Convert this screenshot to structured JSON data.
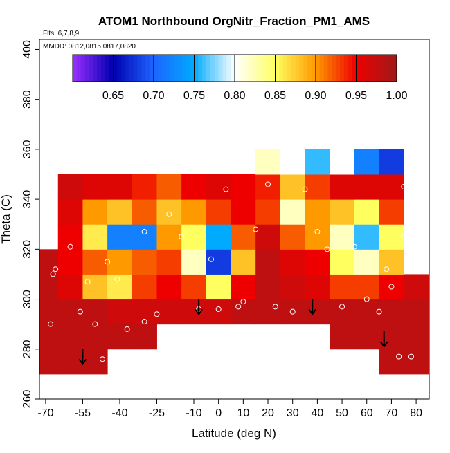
{
  "chart_data": {
    "type": "heatmap",
    "title": "ATOM1 Northbound OrgNitr_Fraction_PM1_AMS",
    "annotations": [
      "Flts: 6,7,8,9",
      "MMDD: 0812,0815,0817,0820"
    ],
    "x_label": "Latitude (deg N)",
    "y_label": "Theta (C)",
    "xlim": [
      -72.5,
      85.3
    ],
    "ylim": [
      260,
      404
    ],
    "xticks": [
      -70,
      -55,
      -40,
      -25,
      -10,
      0,
      10,
      20,
      30,
      40,
      50,
      60,
      70,
      80
    ],
    "yticks": [
      260,
      280,
      300,
      320,
      340,
      360,
      380,
      400
    ],
    "x": [
      -70,
      -60,
      -50,
      -40,
      -30,
      -20,
      -10,
      0,
      10,
      20,
      30,
      40,
      50,
      60,
      70,
      80
    ],
    "y": [
      275,
      285,
      295,
      305,
      315,
      325,
      335,
      345,
      355
    ],
    "z": [
      [
        0.98,
        0.98,
        0.98,
        null,
        null,
        null,
        null,
        null,
        null,
        null,
        null,
        null,
        null,
        null,
        0.98,
        0.98
      ],
      [
        0.98,
        0.98,
        0.98,
        0.98,
        0.98,
        null,
        null,
        null,
        null,
        null,
        null,
        null,
        0.98,
        0.98,
        0.98,
        0.98
      ],
      [
        0.98,
        0.98,
        0.98,
        0.97,
        0.97,
        0.97,
        0.97,
        0.97,
        0.98,
        0.98,
        0.98,
        0.98,
        0.98,
        0.98,
        0.98,
        0.98
      ],
      [
        0.98,
        0.96,
        0.88,
        0.86,
        0.93,
        0.95,
        0.93,
        0.85,
        0.95,
        0.98,
        0.97,
        0.96,
        0.93,
        0.93,
        0.95,
        0.97
      ],
      [
        0.98,
        0.95,
        0.92,
        0.9,
        0.92,
        0.93,
        0.82,
        0.68,
        0.88,
        0.98,
        0.96,
        0.95,
        0.85,
        0.82,
        0.88,
        null
      ],
      [
        null,
        0.95,
        0.86,
        0.72,
        0.72,
        0.9,
        0.85,
        0.75,
        0.92,
        0.97,
        0.92,
        0.9,
        0.82,
        0.76,
        0.85,
        null
      ],
      [
        null,
        0.96,
        0.9,
        0.88,
        0.92,
        0.88,
        0.9,
        0.93,
        0.95,
        0.93,
        0.82,
        0.9,
        0.88,
        0.85,
        0.93,
        null
      ],
      [
        null,
        0.97,
        0.96,
        0.96,
        0.94,
        0.92,
        0.95,
        0.96,
        0.95,
        0.94,
        0.88,
        0.93,
        0.96,
        0.96,
        0.96,
        null
      ],
      [
        null,
        null,
        null,
        null,
        null,
        null,
        null,
        null,
        null,
        0.82,
        0.8,
        0.76,
        0.8,
        0.72,
        0.68,
        null
      ]
    ],
    "zlim": [
      0.6,
      1.0
    ],
    "zticks": [
      0.65,
      {
        "value": 0.7,
        "label": "0.70"
      },
      0.75,
      {
        "value": 0.8,
        "label": "0.80"
      },
      0.85,
      {
        "value": 0.9,
        "label": "0.90"
      },
      0.95,
      {
        "value": 1.0,
        "label": "1.00"
      }
    ],
    "colors": [
      "#9b30ff",
      "#0000b0",
      "#1e64ff",
      "#00aaff",
      "#ffffff",
      "#ffff60",
      "#ff9900",
      "#ee0000",
      "#9e1a1a"
    ],
    "points": {
      "x": [
        -68,
        -67,
        -66,
        -60,
        -56,
        -53,
        -50,
        -47,
        -45,
        -41,
        -37,
        -30,
        -25,
        -30,
        -20,
        -15,
        -8,
        -3,
        0,
        3,
        8,
        10,
        15,
        20,
        23,
        30,
        35,
        40,
        44,
        50,
        55,
        60,
        65,
        68,
        70,
        73,
        75,
        78,
        75
      ],
      "y": [
        290,
        310,
        312,
        321,
        295,
        307,
        290,
        276,
        315,
        308,
        288,
        291,
        294,
        327,
        334,
        325,
        296,
        316,
        296,
        344,
        297,
        299,
        328,
        346,
        297,
        295,
        344,
        327,
        320,
        297,
        321,
        300,
        295,
        312,
        305,
        277,
        325,
        277,
        345
      ]
    },
    "arrows": {
      "x": [
        -55,
        -8,
        38,
        67
      ],
      "y": [
        274,
        294,
        294,
        281
      ]
    }
  }
}
